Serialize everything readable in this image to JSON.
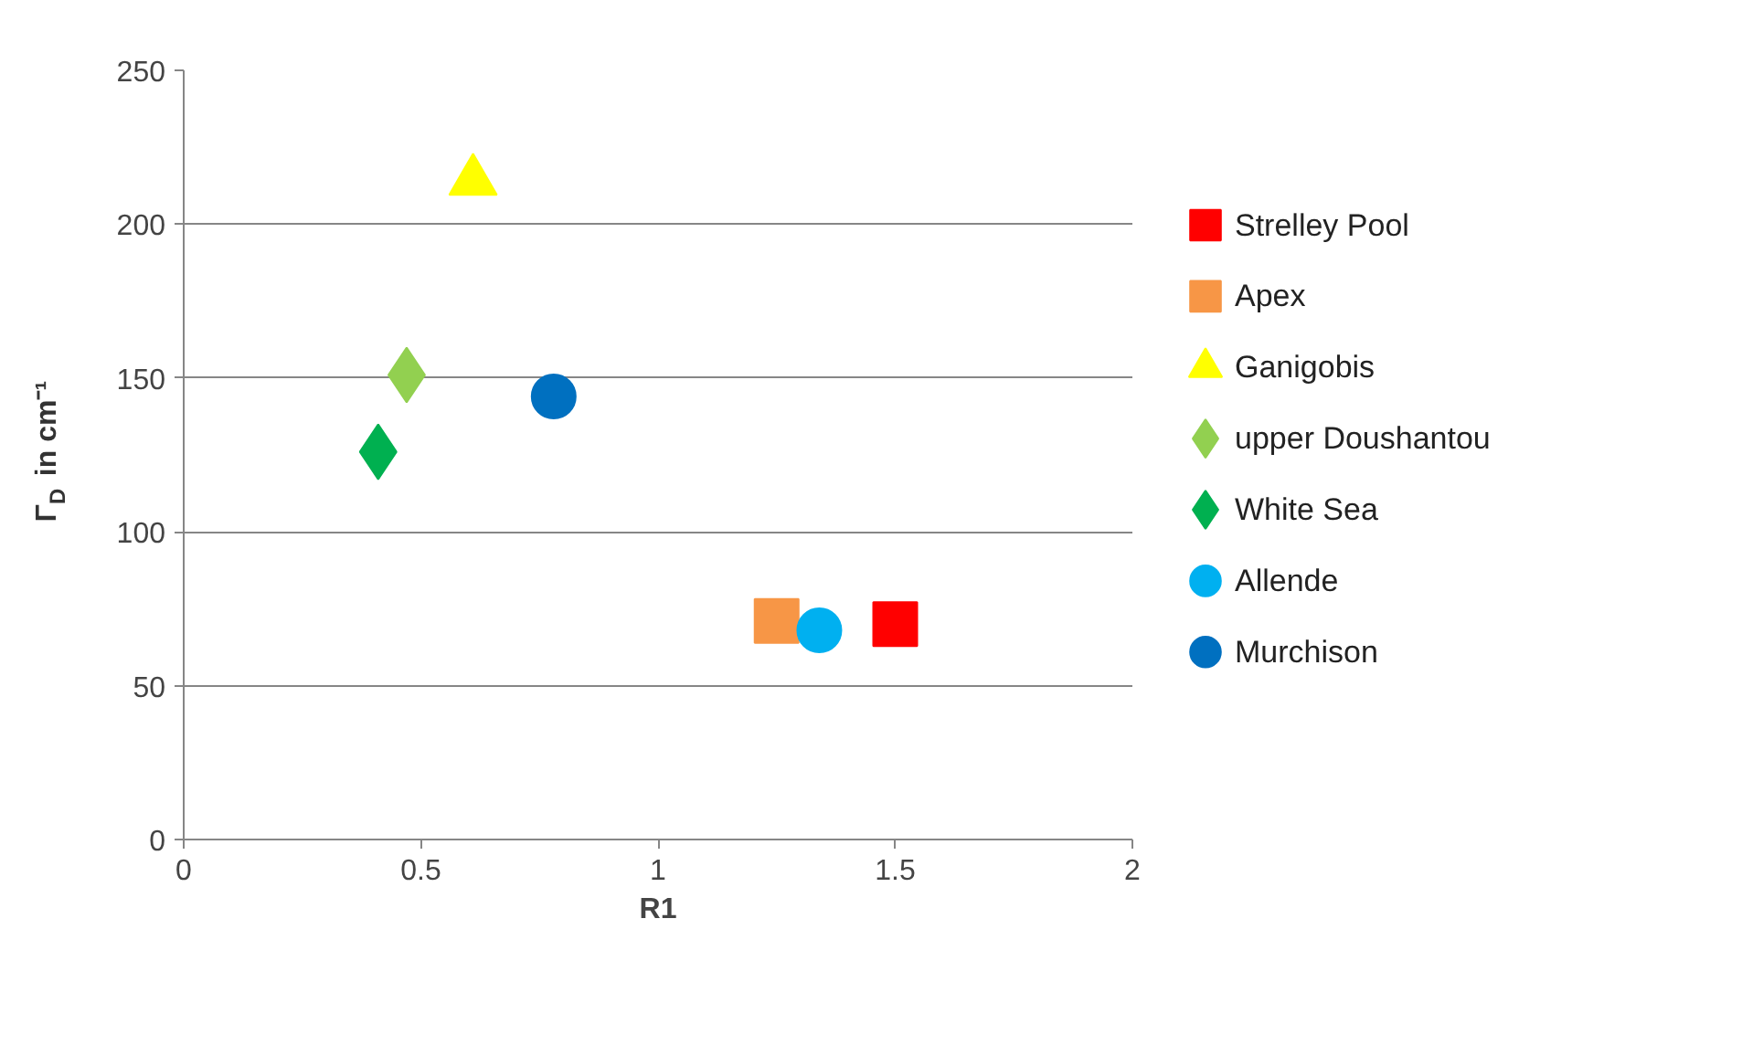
{
  "chart_data": {
    "type": "scatter",
    "xlabel": "R1",
    "ylabel": "Γ$_{D}$ in cm⁻¹",
    "xlim": [
      0,
      2
    ],
    "xticks": [
      0,
      0.5,
      1,
      1.5,
      2
    ],
    "ylim": [
      0,
      250
    ],
    "yticks": [
      0,
      50,
      100,
      150,
      200,
      250
    ],
    "grid": "y",
    "legend": "right",
    "series": [
      {
        "name": "Strelley Pool",
        "color": "#ff0000",
        "marker": "square",
        "x": [
          1.5
        ],
        "values": [
          70
        ]
      },
      {
        "name": "Apex",
        "color": "#f79646",
        "marker": "square",
        "x": [
          1.25
        ],
        "values": [
          71
        ]
      },
      {
        "name": "Ganigobis",
        "color": "#ffff00",
        "marker": "triangle",
        "x": [
          0.61
        ],
        "values": [
          214
        ]
      },
      {
        "name": "upper Doushantou",
        "color": "#92d050",
        "marker": "diamond",
        "x": [
          0.47
        ],
        "values": [
          151
        ]
      },
      {
        "name": "White Sea",
        "color": "#00b050",
        "marker": "diamond",
        "x": [
          0.41
        ],
        "values": [
          126
        ]
      },
      {
        "name": "Allende",
        "color": "#00b0f0",
        "marker": "circle",
        "x": [
          1.34
        ],
        "values": [
          68
        ]
      },
      {
        "name": "Murchison",
        "color": "#0070c0",
        "marker": "circle",
        "x": [
          0.78
        ],
        "values": [
          144
        ]
      }
    ]
  }
}
